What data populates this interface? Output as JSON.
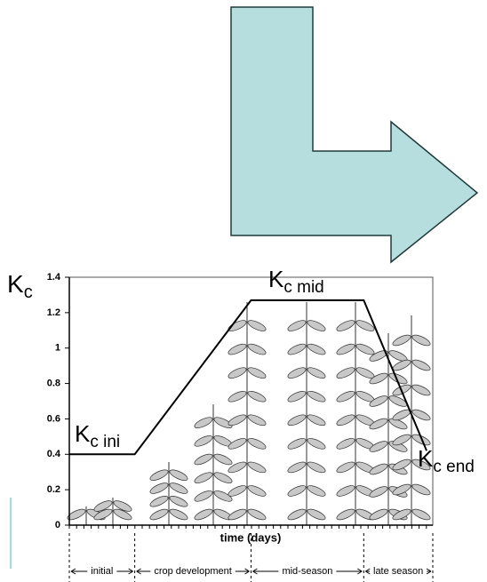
{
  "chart_data": {
    "type": "line",
    "x": [
      0,
      18,
      50,
      81,
      98.3
    ],
    "values": [
      0.4,
      0.4,
      1.27,
      1.27,
      0.42
    ],
    "color": "#000000",
    "xlim": [
      0,
      100
    ],
    "ylim": [
      0,
      1.4
    ],
    "yticks": [
      0,
      0.2,
      0.4,
      0.6,
      0.8,
      1,
      1.2,
      1.4
    ],
    "y_label": {
      "text": "K",
      "subscript": "c"
    },
    "x_label": "time (days)",
    "annotations": [
      {
        "text": "K",
        "subscript": "c ini"
      },
      {
        "text": "K",
        "subscript": "c mid"
      },
      {
        "text": "K",
        "subscript": "c end"
      }
    ],
    "stages": [
      {
        "name": "initial",
        "start": 0,
        "end": 18
      },
      {
        "name": "crop development",
        "start": 18,
        "end": 50
      },
      {
        "name": "mid-season",
        "start": 50,
        "end": 81
      },
      {
        "name": "late season",
        "start": 81,
        "end": 100
      }
    ]
  }
}
